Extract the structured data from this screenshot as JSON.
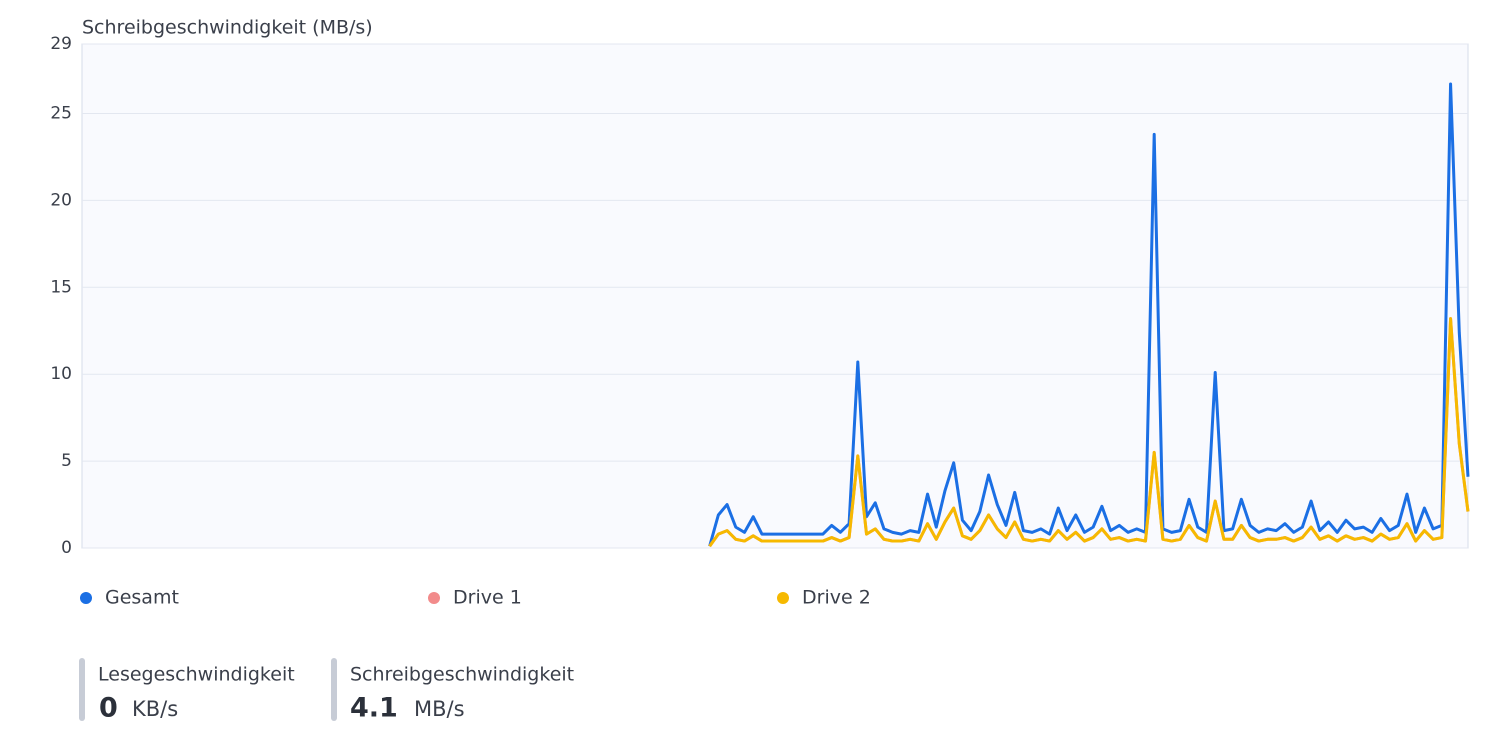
{
  "chart_data": {
    "type": "line",
    "title": "Schreibgeschwindigkeit (MB/s)",
    "ylim": [
      0,
      29
    ],
    "yticks": [
      0,
      5,
      10,
      15,
      20,
      25,
      29
    ],
    "grid": true,
    "series": [
      {
        "name": "Gesamt",
        "color": "#1b6fe4",
        "values": [
          null,
          null,
          null,
          null,
          null,
          null,
          null,
          null,
          null,
          null,
          null,
          null,
          null,
          null,
          null,
          null,
          null,
          null,
          null,
          null,
          null,
          null,
          null,
          null,
          null,
          null,
          null,
          null,
          null,
          null,
          null,
          null,
          null,
          null,
          null,
          null,
          null,
          null,
          null,
          null,
          null,
          null,
          null,
          null,
          null,
          null,
          null,
          null,
          null,
          null,
          null,
          null,
          null,
          null,
          null,
          null,
          null,
          null,
          null,
          null,
          null,
          null,
          null,
          null,
          null,
          null,
          null,
          null,
          null,
          null,
          null,
          null,
          0.1,
          1.9,
          2.5,
          1.2,
          0.9,
          1.8,
          0.8,
          0.8,
          0.8,
          0.8,
          0.8,
          0.8,
          0.8,
          0.8,
          1.3,
          0.9,
          1.4,
          10.7,
          1.8,
          2.6,
          1.1,
          0.9,
          0.8,
          1.0,
          0.9,
          3.1,
          1.2,
          3.3,
          4.9,
          1.6,
          1.0,
          2.1,
          4.2,
          2.5,
          1.3,
          3.2,
          1.0,
          0.9,
          1.1,
          0.8,
          2.3,
          1.0,
          1.9,
          0.9,
          1.2,
          2.4,
          1.0,
          1.3,
          0.9,
          1.1,
          0.9,
          23.8,
          1.1,
          0.9,
          1.0,
          2.8,
          1.2,
          0.9,
          10.1,
          1.0,
          1.1,
          2.8,
          1.3,
          0.9,
          1.1,
          1.0,
          1.4,
          0.9,
          1.2,
          2.7,
          1.0,
          1.5,
          0.9,
          1.6,
          1.1,
          1.2,
          0.9,
          1.7,
          1.0,
          1.3,
          3.1,
          0.9,
          2.3,
          1.1,
          1.3,
          26.7,
          12.4,
          4.1
        ]
      },
      {
        "name": "Drive 1",
        "color": "#f28b8b",
        "values": [
          null,
          null,
          null,
          null,
          null,
          null,
          null,
          null,
          null,
          null,
          null,
          null,
          null,
          null,
          null,
          null,
          null,
          null,
          null,
          null,
          null,
          null,
          null,
          null,
          null,
          null,
          null,
          null,
          null,
          null,
          null,
          null,
          null,
          null,
          null,
          null,
          null,
          null,
          null,
          null,
          null,
          null,
          null,
          null,
          null,
          null,
          null,
          null,
          null,
          null,
          null,
          null,
          null,
          null,
          null,
          null,
          null,
          null,
          null,
          null,
          null,
          null,
          null,
          null,
          null,
          null,
          null,
          null,
          null,
          null,
          null,
          null,
          0.1,
          0.8,
          1.0,
          0.5,
          0.4,
          0.7,
          0.4,
          0.4,
          0.4,
          0.4,
          0.4,
          0.4,
          0.4,
          0.4,
          0.6,
          0.4,
          0.6,
          5.3,
          0.8,
          1.1,
          0.5,
          0.4,
          0.4,
          0.5,
          0.4,
          1.4,
          0.5,
          1.5,
          2.3,
          0.7,
          0.5,
          1.0,
          1.9,
          1.1,
          0.6,
          1.5,
          0.5,
          0.4,
          0.5,
          0.4,
          1.0,
          0.5,
          0.9,
          0.4,
          0.6,
          1.1,
          0.5,
          0.6,
          0.4,
          0.5,
          0.4,
          5.5,
          0.5,
          0.4,
          0.5,
          1.3,
          0.6,
          0.4,
          2.7,
          0.5,
          0.5,
          1.3,
          0.6,
          0.4,
          0.5,
          0.5,
          0.6,
          0.4,
          0.6,
          1.2,
          0.5,
          0.7,
          0.4,
          0.7,
          0.5,
          0.6,
          0.4,
          0.8,
          0.5,
          0.6,
          1.4,
          0.4,
          1.0,
          0.5,
          0.6,
          13.2,
          6.0,
          2.1
        ]
      },
      {
        "name": "Drive 2",
        "color": "#f6b900",
        "values": [
          null,
          null,
          null,
          null,
          null,
          null,
          null,
          null,
          null,
          null,
          null,
          null,
          null,
          null,
          null,
          null,
          null,
          null,
          null,
          null,
          null,
          null,
          null,
          null,
          null,
          null,
          null,
          null,
          null,
          null,
          null,
          null,
          null,
          null,
          null,
          null,
          null,
          null,
          null,
          null,
          null,
          null,
          null,
          null,
          null,
          null,
          null,
          null,
          null,
          null,
          null,
          null,
          null,
          null,
          null,
          null,
          null,
          null,
          null,
          null,
          null,
          null,
          null,
          null,
          null,
          null,
          null,
          null,
          null,
          null,
          null,
          null,
          0.1,
          0.8,
          1.0,
          0.5,
          0.4,
          0.7,
          0.4,
          0.4,
          0.4,
          0.4,
          0.4,
          0.4,
          0.4,
          0.4,
          0.6,
          0.4,
          0.6,
          5.3,
          0.8,
          1.1,
          0.5,
          0.4,
          0.4,
          0.5,
          0.4,
          1.4,
          0.5,
          1.5,
          2.3,
          0.7,
          0.5,
          1.0,
          1.9,
          1.1,
          0.6,
          1.5,
          0.5,
          0.4,
          0.5,
          0.4,
          1.0,
          0.5,
          0.9,
          0.4,
          0.6,
          1.1,
          0.5,
          0.6,
          0.4,
          0.5,
          0.4,
          5.5,
          0.5,
          0.4,
          0.5,
          1.3,
          0.6,
          0.4,
          2.7,
          0.5,
          0.5,
          1.3,
          0.6,
          0.4,
          0.5,
          0.5,
          0.6,
          0.4,
          0.6,
          1.2,
          0.5,
          0.7,
          0.4,
          0.7,
          0.5,
          0.6,
          0.4,
          0.8,
          0.5,
          0.6,
          1.4,
          0.4,
          1.0,
          0.5,
          0.6,
          13.2,
          6.0,
          2.1
        ]
      }
    ]
  },
  "stats": [
    {
      "label": "Lesegeschwindigkeit",
      "value": 0,
      "unit": "KB/s"
    },
    {
      "label": "Schreibgeschwindigkeit",
      "value": 4.1,
      "unit": "MB/s"
    }
  ]
}
